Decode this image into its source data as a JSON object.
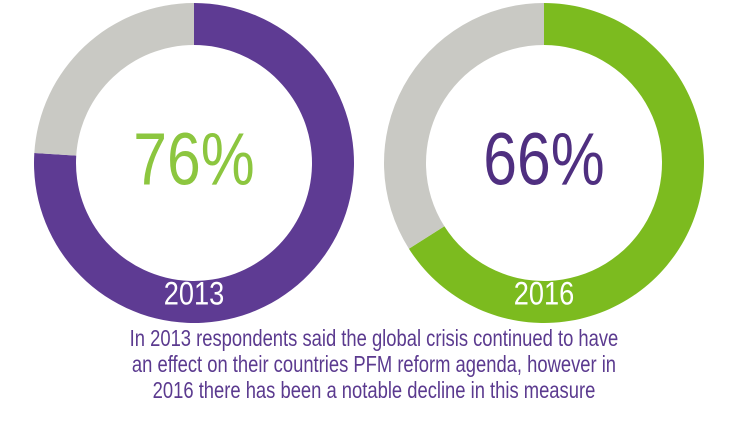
{
  "chart_data": [
    {
      "type": "donut",
      "label": "2013",
      "values": [
        76,
        24
      ],
      "value_labels": [
        "76%",
        null
      ],
      "colors": [
        "#5e3b93",
        "#c9c9c4"
      ],
      "label_color": "#8cc63f"
    },
    {
      "type": "donut",
      "label": "2016",
      "values": [
        66,
        34
      ],
      "value_labels": [
        "66%",
        null
      ],
      "colors": [
        "#7cbb1f",
        "#c9c9c4"
      ],
      "label_color": "#4f2f80"
    }
  ],
  "caption": [
    "In 2013 respondents said the global crisis continued to have",
    "an effect on their countries PFM reform agenda, however in",
    "2016 there has been a notable decline in this measure"
  ]
}
